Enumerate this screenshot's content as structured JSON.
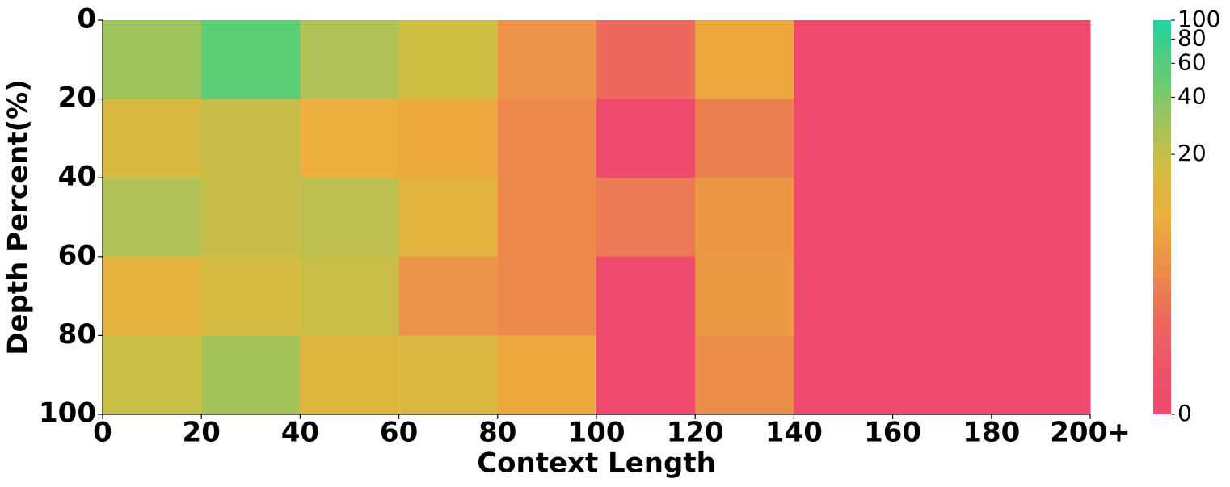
{
  "chart_data": {
    "type": "heatmap",
    "x_label": "Context Length",
    "y_label": "Depth Percent(%)",
    "xlim": [
      0,
      200
    ],
    "xticks": [
      0,
      20,
      40,
      60,
      80,
      100,
      120,
      140,
      160,
      180,
      {
        "value": 200,
        "label": "200+"
      }
    ],
    "ylim": [
      0,
      100
    ],
    "yticks": [
      0,
      20,
      40,
      60,
      80,
      100
    ],
    "y_inverted": true,
    "values": [
      [
        30,
        55,
        25,
        18,
        5,
        2,
        8,
        0,
        0,
        0
      ],
      [
        15,
        20,
        9,
        8,
        4,
        0,
        3.5,
        0,
        0,
        0
      ],
      [
        25,
        20,
        22,
        12,
        4,
        3,
        5.5,
        0,
        0,
        0
      ],
      [
        11,
        17,
        19,
        5,
        4,
        0,
        6,
        0,
        0,
        0
      ],
      [
        19,
        28,
        13,
        14,
        8,
        0,
        4.5,
        0,
        0,
        0
      ]
    ],
    "colorbar_lim": [
      0,
      100
    ],
    "colorbar_ticks": [
      0,
      20,
      40,
      60,
      80,
      100
    ],
    "colorbar_scale": "log1p",
    "colormap": [
      "#f0496e",
      "#ee5466",
      "#ed6a5c",
      "#ec9048",
      "#ecae3c",
      "#d4bc40",
      "#9cc460",
      "#5ccc78",
      "#1cd4a0"
    ]
  }
}
